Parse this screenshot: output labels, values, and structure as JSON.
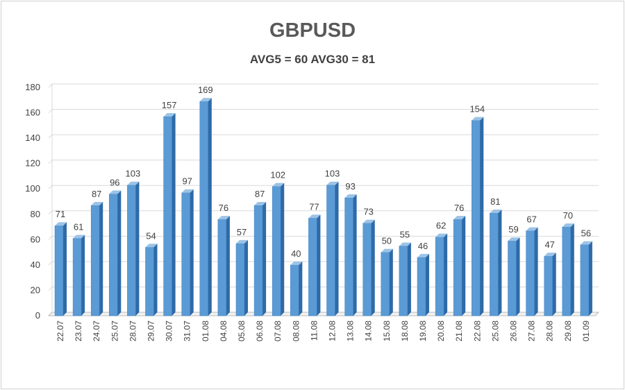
{
  "chart_data": {
    "type": "bar",
    "title": "GBPUSD",
    "subtitle": "AVG5 = 60 AVG30 = 81",
    "categories": [
      "22.07",
      "23.07",
      "24.07",
      "25.07",
      "28.07",
      "29.07",
      "30.07",
      "31.07",
      "01.08",
      "04.08",
      "05.08",
      "06.08",
      "07.08",
      "08.08",
      "11.08",
      "12.08",
      "13.08",
      "14.08",
      "15.08",
      "18.08",
      "19.08",
      "20.08",
      "21.08",
      "22.08",
      "25.08",
      "26.08",
      "27.08",
      "28.08",
      "29.08",
      "01.09"
    ],
    "values": [
      71,
      61,
      87,
      96,
      103,
      54,
      157,
      97,
      169,
      76,
      57,
      87,
      102,
      40,
      77,
      103,
      93,
      73,
      50,
      55,
      46,
      62,
      76,
      154,
      81,
      59,
      67,
      47,
      70,
      56
    ],
    "ylim": [
      0,
      180
    ],
    "yticks": [
      0,
      20,
      40,
      60,
      80,
      100,
      120,
      140,
      160,
      180
    ],
    "xlabel": "",
    "ylabel": "",
    "grid": true,
    "legend": "none",
    "colors": {
      "bar_front": "#5b9bd5",
      "bar_side": "#2e6aa8",
      "bar_top": "#9cc3e6",
      "grid": "#d9d9d9",
      "axis": "#a6a6a6",
      "label": "#404040"
    }
  }
}
